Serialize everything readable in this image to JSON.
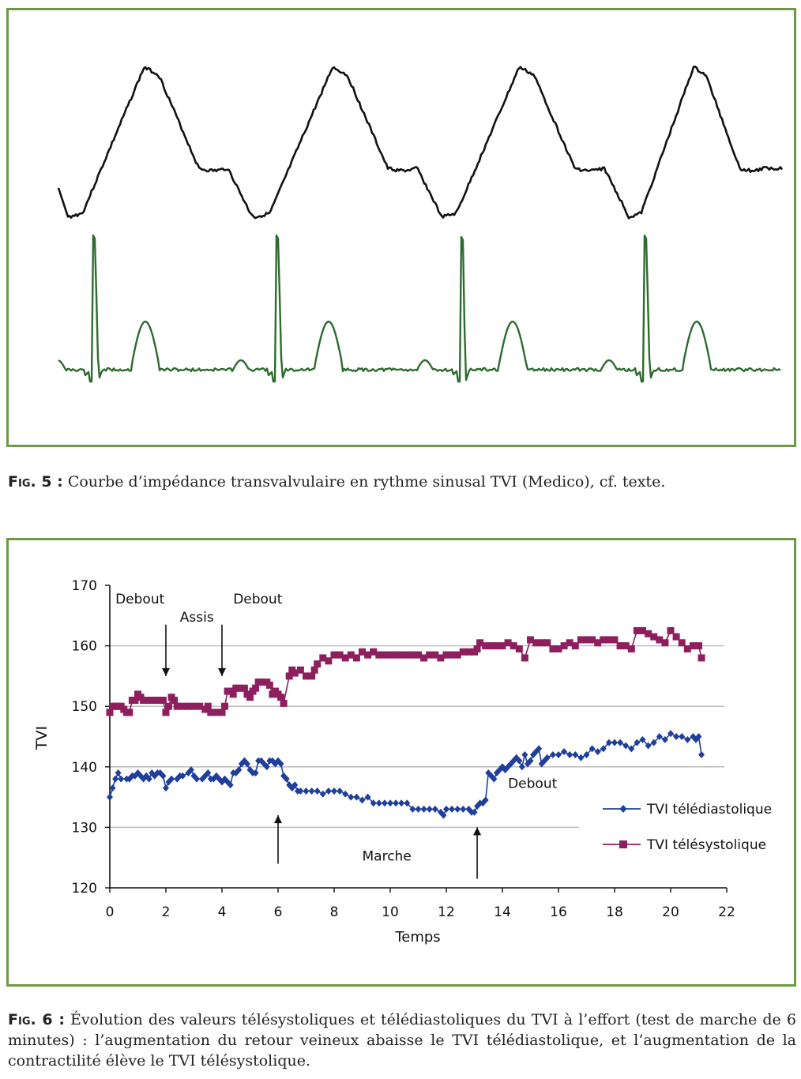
{
  "figure5": {
    "caption_label": "Fig. 5 :",
    "caption_text": "Courbe d’impédance transvalvulaire en rythme sinusal TVI (Medico), cf. texte.",
    "colors": {
      "border": "#6e9a45",
      "impedance": "#111111",
      "ecg": "#2e6b2e"
    }
  },
  "figure6": {
    "caption_label": "Fig. 6 :",
    "caption_text": "Évolution des valeurs télésystoliques et télédiastoliques du TVI à l’effort (test de marche de 6 minutes) : l’augmentation du retour veineux abaisse le TVI télédiastolique, et l’augmentation de la contractilité élève le TVI télésystolique."
  },
  "chart_data": {
    "type": "line",
    "xlabel": "Temps",
    "ylabel": "TVI",
    "xlim": [
      0,
      22
    ],
    "ylim": [
      120,
      170
    ],
    "xticks": [
      "0",
      "2",
      "4",
      "6",
      "8",
      "10",
      "12",
      "14",
      "16",
      "18",
      "20",
      "22"
    ],
    "yticks": [
      "120",
      "130",
      "140",
      "150",
      "160",
      "170"
    ],
    "grid": "horizontal at 130, 140, 150, 160",
    "legend_position": "right",
    "colors": {
      "diastolic": "#1f3f9a",
      "systolic": "#8e1f5e",
      "grid": "#b5b5b5"
    },
    "series": [
      {
        "name": "TVI télédiastolique",
        "marker": "diamond",
        "points": [
          [
            0,
            135
          ],
          [
            0.1,
            136.5
          ],
          [
            0.2,
            138
          ],
          [
            0.3,
            139
          ],
          [
            0.4,
            138
          ],
          [
            0.6,
            138
          ],
          [
            0.7,
            138
          ],
          [
            0.8,
            138.5
          ],
          [
            0.9,
            138.5
          ],
          [
            1.0,
            139
          ],
          [
            1.1,
            138.5
          ],
          [
            1.2,
            138
          ],
          [
            1.3,
            138.5
          ],
          [
            1.4,
            138
          ],
          [
            1.5,
            139
          ],
          [
            1.6,
            138.5
          ],
          [
            1.7,
            139
          ],
          [
            1.8,
            139
          ],
          [
            1.9,
            138.5
          ],
          [
            2.0,
            136.5
          ],
          [
            2.1,
            137.5
          ],
          [
            2.2,
            138
          ],
          [
            2.4,
            138
          ],
          [
            2.5,
            138.5
          ],
          [
            2.6,
            138.5
          ],
          [
            2.8,
            139
          ],
          [
            2.9,
            139.5
          ],
          [
            3.0,
            138.5
          ],
          [
            3.1,
            138
          ],
          [
            3.3,
            138
          ],
          [
            3.4,
            138.5
          ],
          [
            3.5,
            139
          ],
          [
            3.6,
            138
          ],
          [
            3.7,
            138
          ],
          [
            3.8,
            138.5
          ],
          [
            3.9,
            138
          ],
          [
            4.0,
            137.5
          ],
          [
            4.1,
            138
          ],
          [
            4.2,
            137.5
          ],
          [
            4.3,
            137
          ],
          [
            4.4,
            139
          ],
          [
            4.5,
            139
          ],
          [
            4.6,
            139.5
          ],
          [
            4.7,
            140.5
          ],
          [
            4.8,
            141
          ],
          [
            4.9,
            140.5
          ],
          [
            5.0,
            139.5
          ],
          [
            5.1,
            139
          ],
          [
            5.2,
            139
          ],
          [
            5.3,
            141
          ],
          [
            5.4,
            141
          ],
          [
            5.5,
            140.5
          ],
          [
            5.6,
            140
          ],
          [
            5.7,
            141
          ],
          [
            5.8,
            141
          ],
          [
            5.9,
            140.5
          ],
          [
            6.0,
            141
          ],
          [
            6.1,
            140.5
          ],
          [
            6.2,
            138.5
          ],
          [
            6.3,
            138
          ],
          [
            6.4,
            137
          ],
          [
            6.5,
            136.5
          ],
          [
            6.6,
            137
          ],
          [
            6.7,
            136
          ],
          [
            6.8,
            136
          ],
          [
            7.0,
            136
          ],
          [
            7.2,
            136
          ],
          [
            7.4,
            136
          ],
          [
            7.6,
            135.5
          ],
          [
            7.8,
            136
          ],
          [
            8.0,
            136
          ],
          [
            8.2,
            136
          ],
          [
            8.4,
            135.5
          ],
          [
            8.6,
            135
          ],
          [
            8.8,
            135
          ],
          [
            9.0,
            134.5
          ],
          [
            9.2,
            135
          ],
          [
            9.4,
            134
          ],
          [
            9.6,
            134
          ],
          [
            9.8,
            134
          ],
          [
            10.0,
            134
          ],
          [
            10.2,
            134
          ],
          [
            10.4,
            134
          ],
          [
            10.6,
            134
          ],
          [
            10.8,
            133
          ],
          [
            11.0,
            133
          ],
          [
            11.2,
            133
          ],
          [
            11.4,
            133
          ],
          [
            11.6,
            133
          ],
          [
            11.8,
            132.5
          ],
          [
            11.9,
            132
          ],
          [
            12.0,
            133
          ],
          [
            12.2,
            133
          ],
          [
            12.4,
            133
          ],
          [
            12.6,
            133
          ],
          [
            12.8,
            133
          ],
          [
            12.9,
            132.5
          ],
          [
            13.0,
            132.5
          ],
          [
            13.1,
            133.5
          ],
          [
            13.2,
            134
          ],
          [
            13.3,
            134
          ],
          [
            13.4,
            134.5
          ],
          [
            13.5,
            139
          ],
          [
            13.6,
            138.5
          ],
          [
            13.7,
            138
          ],
          [
            13.8,
            139
          ],
          [
            13.9,
            139.5
          ],
          [
            14.0,
            140
          ],
          [
            14.1,
            139.5
          ],
          [
            14.2,
            140
          ],
          [
            14.3,
            140.5
          ],
          [
            14.4,
            141
          ],
          [
            14.5,
            141.5
          ],
          [
            14.6,
            141
          ],
          [
            14.7,
            140
          ],
          [
            14.8,
            142
          ],
          [
            14.9,
            140.5
          ],
          [
            15.0,
            141
          ],
          [
            15.1,
            142
          ],
          [
            15.2,
            142.5
          ],
          [
            15.3,
            143
          ],
          [
            15.4,
            140.5
          ],
          [
            15.5,
            141
          ],
          [
            15.6,
            141.5
          ],
          [
            15.8,
            142
          ],
          [
            16.0,
            142
          ],
          [
            16.2,
            142.5
          ],
          [
            16.4,
            142
          ],
          [
            16.6,
            142
          ],
          [
            16.8,
            141.5
          ],
          [
            17.0,
            142
          ],
          [
            17.2,
            143
          ],
          [
            17.4,
            142.5
          ],
          [
            17.6,
            143
          ],
          [
            17.8,
            144
          ],
          [
            18.0,
            144
          ],
          [
            18.2,
            144
          ],
          [
            18.4,
            143.5
          ],
          [
            18.6,
            143
          ],
          [
            18.8,
            144
          ],
          [
            19.0,
            144.5
          ],
          [
            19.2,
            143.5
          ],
          [
            19.4,
            144
          ],
          [
            19.6,
            145
          ],
          [
            19.8,
            144.5
          ],
          [
            20.0,
            145.5
          ],
          [
            20.2,
            145
          ],
          [
            20.4,
            145
          ],
          [
            20.6,
            144.5
          ],
          [
            20.8,
            145
          ],
          [
            20.9,
            144.5
          ],
          [
            21.0,
            145
          ],
          [
            21.1,
            142
          ]
        ]
      },
      {
        "name": "TVI télésystolique",
        "marker": "square",
        "points": [
          [
            0,
            149
          ],
          [
            0.1,
            150
          ],
          [
            0.2,
            150
          ],
          [
            0.3,
            150
          ],
          [
            0.4,
            150
          ],
          [
            0.5,
            149.5
          ],
          [
            0.6,
            149
          ],
          [
            0.7,
            149
          ],
          [
            0.8,
            151
          ],
          [
            0.9,
            151
          ],
          [
            1.0,
            152
          ],
          [
            1.1,
            151.5
          ],
          [
            1.2,
            151
          ],
          [
            1.4,
            151
          ],
          [
            1.6,
            151
          ],
          [
            1.8,
            151
          ],
          [
            1.9,
            151
          ],
          [
            2.0,
            149
          ],
          [
            2.1,
            150
          ],
          [
            2.2,
            151.5
          ],
          [
            2.3,
            151
          ],
          [
            2.4,
            150
          ],
          [
            2.6,
            150
          ],
          [
            2.8,
            150
          ],
          [
            3.0,
            150
          ],
          [
            3.2,
            150
          ],
          [
            3.4,
            149.5
          ],
          [
            3.5,
            150
          ],
          [
            3.6,
            149
          ],
          [
            3.8,
            149
          ],
          [
            4.0,
            149
          ],
          [
            4.1,
            150
          ],
          [
            4.2,
            152.5
          ],
          [
            4.3,
            152.5
          ],
          [
            4.4,
            152
          ],
          [
            4.5,
            153
          ],
          [
            4.6,
            153
          ],
          [
            4.8,
            153
          ],
          [
            4.9,
            152
          ],
          [
            5.0,
            151.5
          ],
          [
            5.1,
            152.5
          ],
          [
            5.2,
            153
          ],
          [
            5.3,
            154
          ],
          [
            5.4,
            154
          ],
          [
            5.6,
            154
          ],
          [
            5.7,
            153.5
          ],
          [
            5.8,
            152
          ],
          [
            5.9,
            152.5
          ],
          [
            6.0,
            152
          ],
          [
            6.1,
            151.5
          ],
          [
            6.2,
            150.5
          ],
          [
            6.4,
            155
          ],
          [
            6.5,
            156
          ],
          [
            6.6,
            155.5
          ],
          [
            6.8,
            156
          ],
          [
            7.0,
            155
          ],
          [
            7.2,
            155
          ],
          [
            7.3,
            156
          ],
          [
            7.4,
            157
          ],
          [
            7.6,
            158
          ],
          [
            7.8,
            157.5
          ],
          [
            8.0,
            158.5
          ],
          [
            8.2,
            158.5
          ],
          [
            8.4,
            158
          ],
          [
            8.6,
            158.5
          ],
          [
            8.8,
            158
          ],
          [
            9.0,
            159
          ],
          [
            9.2,
            158.5
          ],
          [
            9.4,
            159
          ],
          [
            9.6,
            158.5
          ],
          [
            9.8,
            158.5
          ],
          [
            10.0,
            158.5
          ],
          [
            10.2,
            158.5
          ],
          [
            10.4,
            158.5
          ],
          [
            10.6,
            158.5
          ],
          [
            10.8,
            158.5
          ],
          [
            11.0,
            158.5
          ],
          [
            11.2,
            158
          ],
          [
            11.4,
            158.5
          ],
          [
            11.6,
            158.5
          ],
          [
            11.8,
            158
          ],
          [
            12.0,
            158.5
          ],
          [
            12.2,
            158.5
          ],
          [
            12.4,
            158.5
          ],
          [
            12.6,
            159
          ],
          [
            12.8,
            159
          ],
          [
            13.0,
            159
          ],
          [
            13.1,
            159.5
          ],
          [
            13.2,
            160.5
          ],
          [
            13.4,
            160
          ],
          [
            13.6,
            160
          ],
          [
            13.8,
            160
          ],
          [
            14.0,
            160
          ],
          [
            14.2,
            160.5
          ],
          [
            14.4,
            160
          ],
          [
            14.6,
            159.5
          ],
          [
            14.8,
            158
          ],
          [
            15.0,
            161
          ],
          [
            15.2,
            160.5
          ],
          [
            15.4,
            160.5
          ],
          [
            15.6,
            160.5
          ],
          [
            15.8,
            159.5
          ],
          [
            16.0,
            159.5
          ],
          [
            16.2,
            160
          ],
          [
            16.4,
            160.5
          ],
          [
            16.6,
            160
          ],
          [
            16.8,
            161
          ],
          [
            17.0,
            161
          ],
          [
            17.2,
            161
          ],
          [
            17.4,
            160.5
          ],
          [
            17.6,
            161
          ],
          [
            17.8,
            161
          ],
          [
            18.0,
            161
          ],
          [
            18.2,
            160
          ],
          [
            18.4,
            160
          ],
          [
            18.6,
            159.5
          ],
          [
            18.8,
            162.5
          ],
          [
            19.0,
            162.5
          ],
          [
            19.2,
            162
          ],
          [
            19.4,
            161.5
          ],
          [
            19.6,
            161
          ],
          [
            19.8,
            160.5
          ],
          [
            20.0,
            162.5
          ],
          [
            20.2,
            161.5
          ],
          [
            20.4,
            160.5
          ],
          [
            20.6,
            159.5
          ],
          [
            20.8,
            160
          ],
          [
            21.0,
            160
          ],
          [
            21.1,
            158
          ]
        ]
      }
    ],
    "annotations": [
      {
        "text": "Debout",
        "x": 0.2,
        "y": 167
      },
      {
        "text": "Assis",
        "x": 2.5,
        "y": 164
      },
      {
        "text": "Debout",
        "x": 4.4,
        "y": 167
      },
      {
        "text": "Marche",
        "x": 9.0,
        "y": 124.5
      },
      {
        "text": "Debout",
        "x": 14.2,
        "y": 136.5
      }
    ],
    "arrows": [
      {
        "direction": "down",
        "x": 2.0,
        "from_y": 163.5,
        "to_y": 155
      },
      {
        "direction": "down",
        "x": 4.0,
        "from_y": 163.5,
        "to_y": 155
      },
      {
        "direction": "up",
        "x": 6.0,
        "from_y": 124,
        "to_y": 132
      },
      {
        "direction": "up",
        "x": 13.1,
        "from_y": 121.5,
        "to_y": 130
      }
    ]
  }
}
